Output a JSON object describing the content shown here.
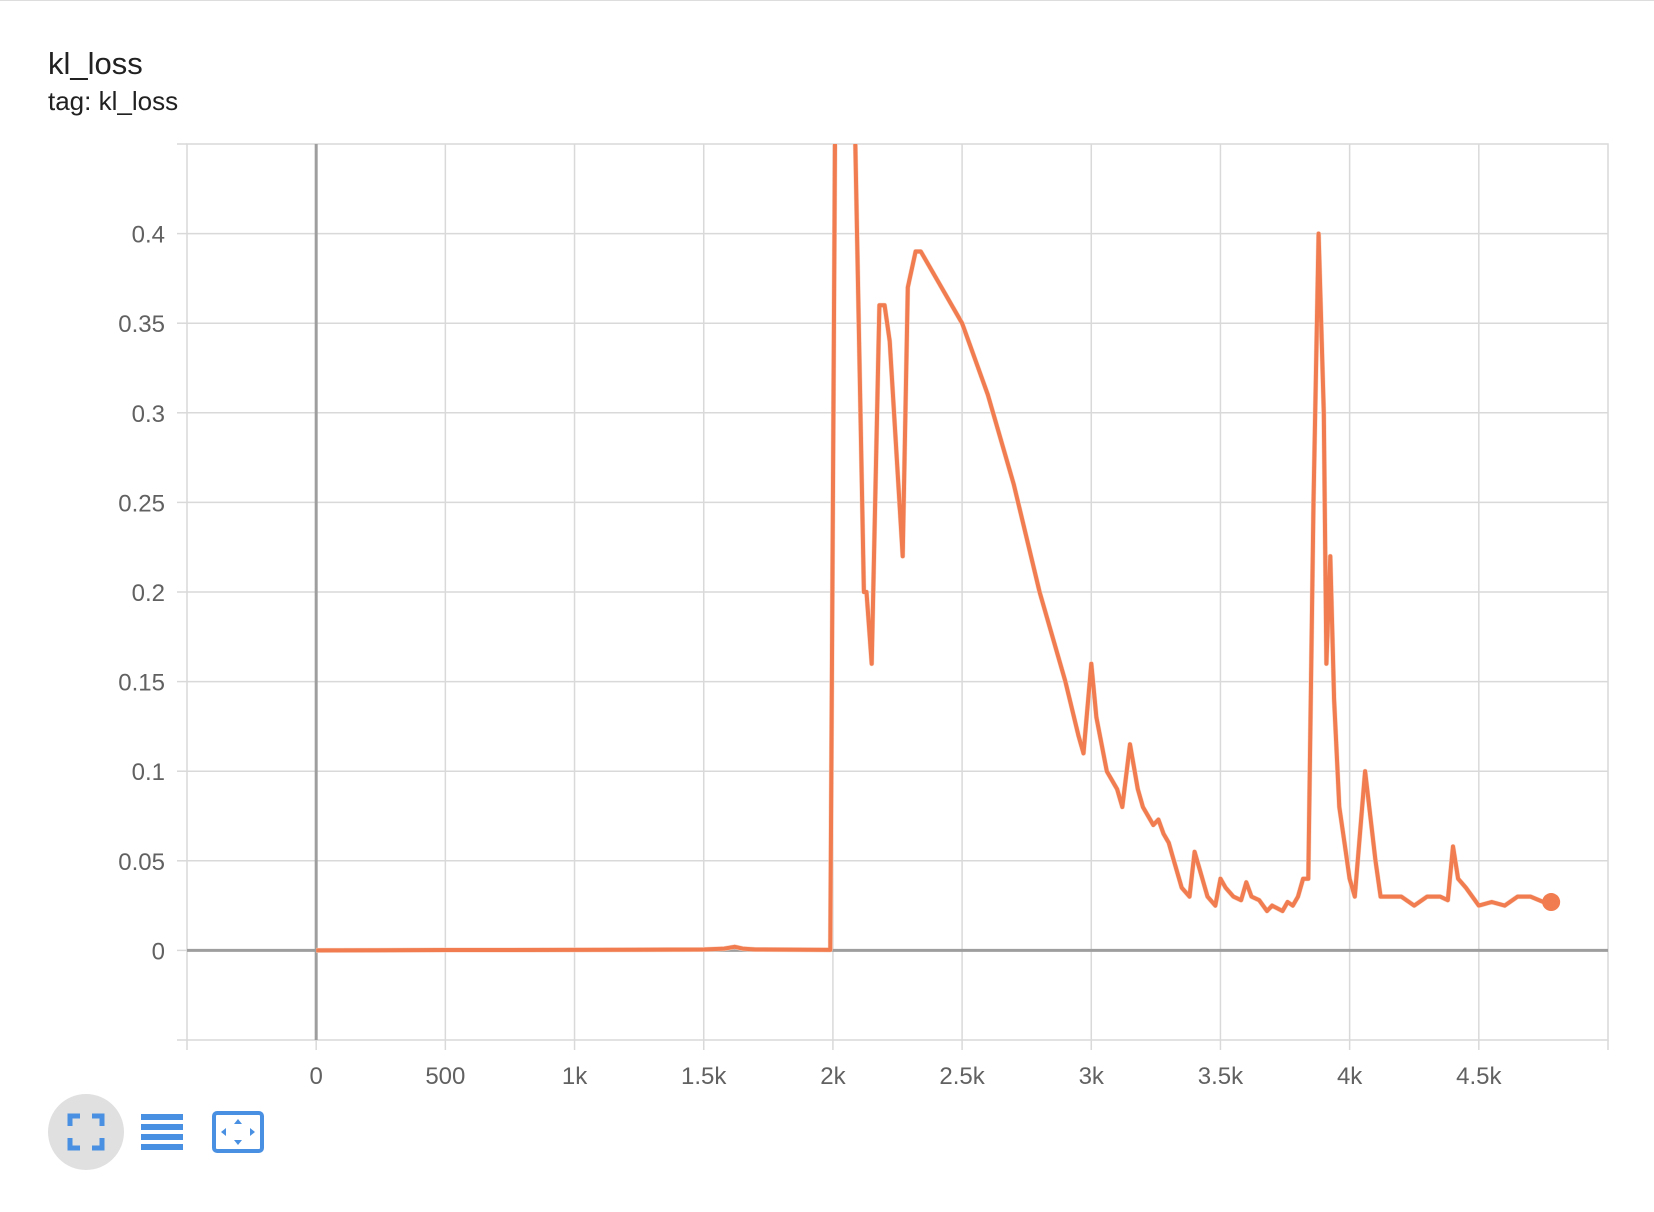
{
  "header": {
    "title": "kl_loss",
    "subtitle": "tag: kl_loss"
  },
  "colors": {
    "series": "#f07c4f",
    "series_raw": "#f9d7c8",
    "grid": "#d9d9d9",
    "axis": "#9e9e9e",
    "toolbar_icon": "#4a90e2"
  },
  "toolbar": {
    "buttons": [
      {
        "icon": "fullscreen-icon",
        "active": true
      },
      {
        "icon": "list-icon",
        "active": false
      },
      {
        "icon": "fit-domain-icon",
        "active": false
      }
    ]
  },
  "chart_data": {
    "type": "line",
    "title": "kl_loss",
    "subtitle": "tag: kl_loss",
    "xlim": [
      -500,
      5000
    ],
    "ylim": [
      -0.05,
      0.45
    ],
    "x_ticks": [
      0,
      500,
      1000,
      1500,
      2000,
      2500,
      3000,
      3500,
      4000,
      4500
    ],
    "x_tick_labels": [
      "0",
      "500",
      "1k",
      "1.5k",
      "2k",
      "2.5k",
      "3k",
      "3.5k",
      "4k",
      "4.5k"
    ],
    "y_ticks": [
      0,
      0.05,
      0.1,
      0.15,
      0.2,
      0.25,
      0.3,
      0.35,
      0.4
    ],
    "y_tick_labels": [
      "0",
      "0.05",
      "0.1",
      "0.15",
      "0.2",
      "0.25",
      "0.3",
      "0.35",
      "0.4"
    ],
    "grid": true,
    "series": [
      {
        "x": [
          0,
          500,
          1000,
          1500,
          1580,
          1620,
          1650,
          1700,
          1990,
          2010,
          2080,
          2120,
          2130,
          2150,
          2180,
          2200,
          2220,
          2270,
          2290,
          2320,
          2340,
          2400,
          2500,
          2600,
          2700,
          2800,
          2900,
          2950,
          2970,
          3000,
          3020,
          3060,
          3100,
          3120,
          3150,
          3180,
          3200,
          3220,
          3240,
          3260,
          3280,
          3300,
          3320,
          3350,
          3380,
          3400,
          3420,
          3450,
          3480,
          3500,
          3520,
          3550,
          3580,
          3600,
          3620,
          3650,
          3680,
          3700,
          3740,
          3760,
          3780,
          3800,
          3820,
          3840,
          3860,
          3880,
          3900,
          3910,
          3925,
          3940,
          3960,
          3980,
          4000,
          4020,
          4060,
          4080,
          4100,
          4120,
          4150,
          4200,
          4250,
          4300,
          4350,
          4380,
          4400,
          4420,
          4450,
          4500,
          4550,
          4600,
          4650,
          4700,
          4750,
          4780
        ],
        "y": [
          0,
          0.0002,
          0.0003,
          0.0005,
          0.001,
          0.002,
          0.001,
          0.0005,
          0.0003,
          0.5,
          0.5,
          0.2,
          0.2,
          0.16,
          0.36,
          0.36,
          0.34,
          0.22,
          0.37,
          0.39,
          0.39,
          0.375,
          0.35,
          0.31,
          0.26,
          0.2,
          0.15,
          0.12,
          0.11,
          0.16,
          0.13,
          0.1,
          0.09,
          0.08,
          0.115,
          0.09,
          0.08,
          0.075,
          0.07,
          0.073,
          0.065,
          0.06,
          0.05,
          0.035,
          0.03,
          0.055,
          0.045,
          0.03,
          0.025,
          0.04,
          0.035,
          0.03,
          0.028,
          0.038,
          0.03,
          0.028,
          0.022,
          0.025,
          0.022,
          0.027,
          0.025,
          0.03,
          0.04,
          0.04,
          0.25,
          0.4,
          0.3,
          0.16,
          0.22,
          0.14,
          0.08,
          0.06,
          0.04,
          0.03,
          0.1,
          0.075,
          0.05,
          0.03,
          0.03,
          0.03,
          0.025,
          0.03,
          0.03,
          0.028,
          0.058,
          0.04,
          0.035,
          0.025,
          0.027,
          0.025,
          0.03,
          0.03,
          0.027,
          0.027
        ]
      }
    ]
  }
}
